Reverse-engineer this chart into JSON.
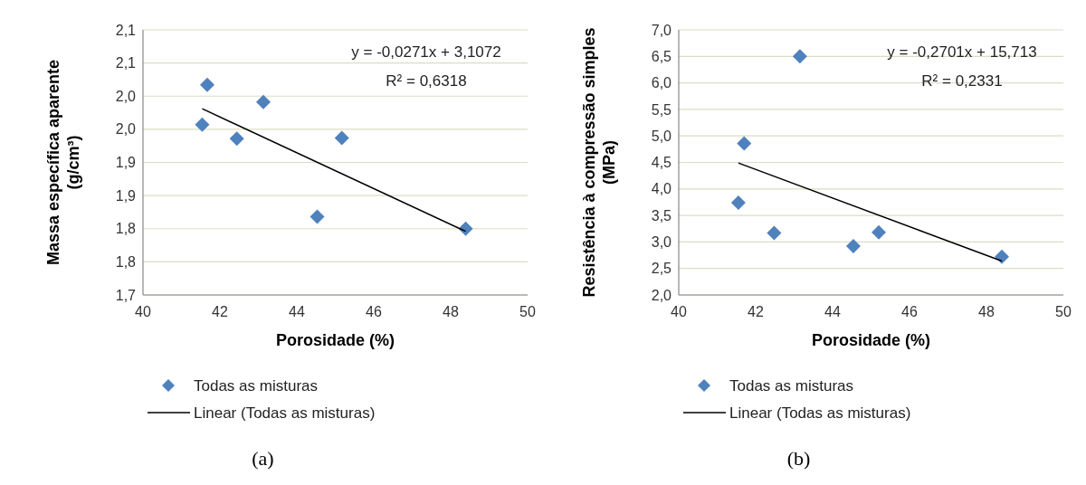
{
  "chart_data": [
    {
      "type": "scatter",
      "xlabel": "Porosidade (%)",
      "ylabel": "Massa específica aparente (g/cm³)",
      "xlim": [
        40,
        50
      ],
      "xticks": [
        40,
        42,
        44,
        46,
        48,
        50
      ],
      "ylim": [
        1.7,
        2.1
      ],
      "yticks": [
        {
          "value": 1.7,
          "label": "1,7"
        },
        {
          "value": 1.75,
          "label": "1,8"
        },
        {
          "value": 1.8,
          "label": "1,8"
        },
        {
          "value": 1.85,
          "label": "1,9"
        },
        {
          "value": 1.9,
          "label": "1,9"
        },
        {
          "value": 1.95,
          "label": "2,0"
        },
        {
          "value": 2.0,
          "label": "2,0"
        },
        {
          "value": 2.05,
          "label": "2,1"
        },
        {
          "value": 2.1,
          "label": "2,1"
        }
      ],
      "grid": "y",
      "legend": "bottom",
      "line_style": "solid",
      "series": [
        {
          "name": "Todas as misturas",
          "marker": "diamond",
          "color": "#4f81bd",
          "x": [
            41.67,
            41.54,
            42.44,
            43.13,
            44.53,
            45.17,
            48.39
          ],
          "values": [
            2.017,
            1.957,
            1.936,
            1.991,
            1.818,
            1.937,
            1.8
          ]
        },
        {
          "type": "line",
          "marker": "none",
          "name": "Linear (Todas as misturas)",
          "color": "#000000",
          "x": [
            41.54,
            48.39
          ],
          "values": [
            1.981,
            1.796
          ]
        }
      ],
      "annotations": [
        "y = -0,0271x + 3,1072",
        "R² = 0,6318",
        "(a)"
      ]
    },
    {
      "type": "scatter",
      "xlabel": "Porosidade (%)",
      "ylabel": "Resistência à compressão simples (MPa)",
      "xlim": [
        40,
        50
      ],
      "xticks": [
        40,
        42,
        44,
        46,
        48,
        50
      ],
      "ylim": [
        2,
        7
      ],
      "yticks": [
        {
          "value": 2,
          "label": "2,0"
        },
        {
          "value": 2.5,
          "label": "2,5"
        },
        {
          "value": 3,
          "label": "3,0"
        },
        {
          "value": 3.5,
          "label": "3,5"
        },
        {
          "value": 4,
          "label": "4,0"
        },
        {
          "value": 4.5,
          "label": "4,5"
        },
        {
          "value": 5,
          "label": "5,0"
        },
        {
          "value": 5.5,
          "label": "5,5"
        },
        {
          "value": 6,
          "label": "6,0"
        },
        {
          "value": 6.5,
          "label": "6,5"
        },
        {
          "value": 7,
          "label": "7,0"
        }
      ],
      "grid": "y",
      "legend": "bottom",
      "line_style": "solid",
      "series": [
        {
          "name": "Todas as misturas",
          "marker": "diamond",
          "color": "#4f81bd",
          "x": [
            41.55,
            41.7,
            42.48,
            43.15,
            44.54,
            45.2,
            48.4
          ],
          "values": [
            3.74,
            4.86,
            3.17,
            6.5,
            2.92,
            3.18,
            2.72
          ]
        },
        {
          "type": "line",
          "marker": "none",
          "name": "Linear (Todas as misturas)",
          "color": "#000000",
          "x": [
            41.55,
            48.4
          ],
          "values": [
            4.49,
            2.64
          ]
        }
      ],
      "annotations": [
        "y = -0,2701x + 15,713",
        "R² = 0,2331",
        "(b)"
      ]
    }
  ]
}
